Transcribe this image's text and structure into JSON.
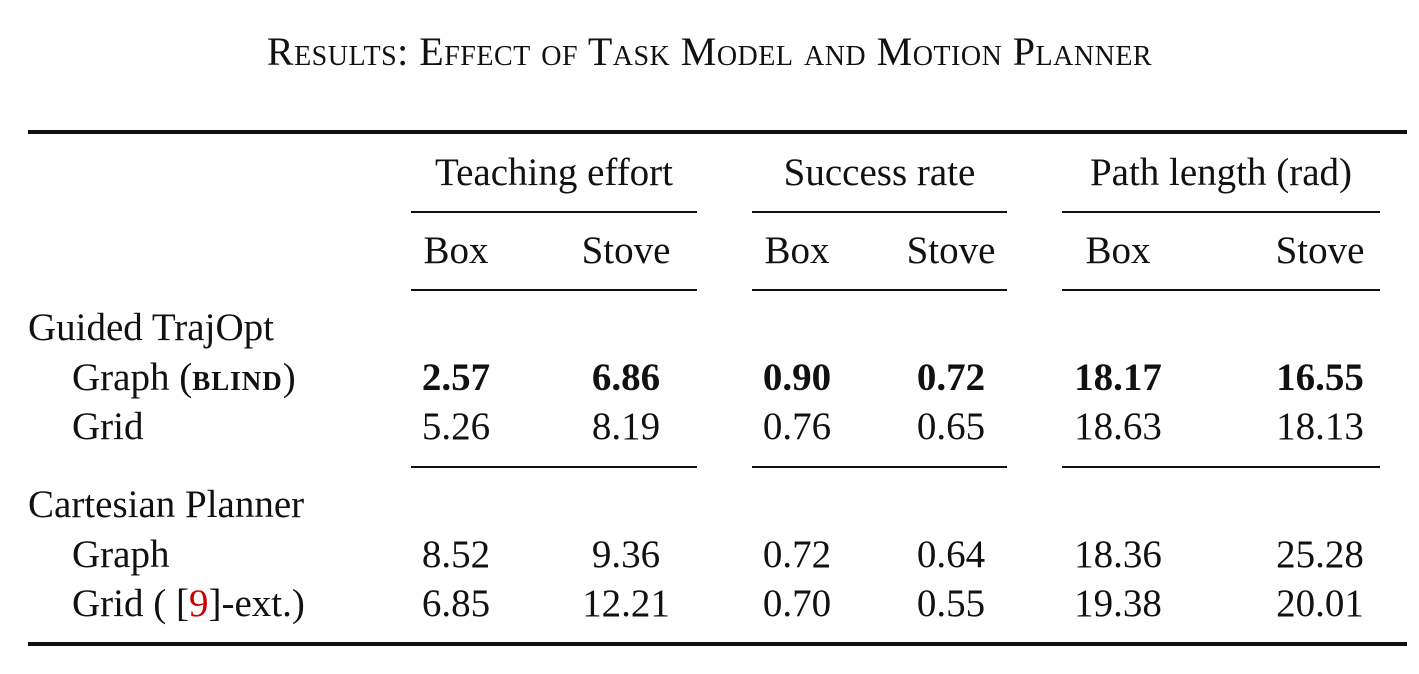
{
  "caption": "Results: Effect of Task Model and Motion Planner",
  "group_headers": [
    "Teaching effort",
    "Success rate",
    "Path length (rad)"
  ],
  "sub_headers": [
    "Box",
    "Stove",
    "Box",
    "Stove",
    "Box",
    "Stove"
  ],
  "sections": [
    {
      "title": "Guided TrajOpt",
      "rows": [
        {
          "label_prefix": "Graph (",
          "label_emph": "blind",
          "label_suffix": ")",
          "values": [
            "2.57",
            "6.86",
            "0.90",
            "0.72",
            "18.17",
            "16.55"
          ],
          "bold": true
        },
        {
          "label": "Grid",
          "values": [
            "5.26",
            "8.19",
            "0.76",
            "0.65",
            "18.63",
            "18.13"
          ]
        }
      ]
    },
    {
      "title": "Cartesian Planner",
      "rows": [
        {
          "label": "Graph",
          "values": [
            "8.52",
            "9.36",
            "0.72",
            "0.64",
            "18.36",
            "25.28"
          ]
        },
        {
          "label_prefix": "Grid ( [",
          "label_ref": "9",
          "label_suffix": "]-ext.)",
          "values": [
            "6.85",
            "12.21",
            "0.70",
            "0.55",
            "19.38",
            "20.01"
          ]
        }
      ]
    }
  ],
  "colors": {
    "text": "#111111",
    "citation": "#cc0000",
    "background": "#ffffff"
  }
}
